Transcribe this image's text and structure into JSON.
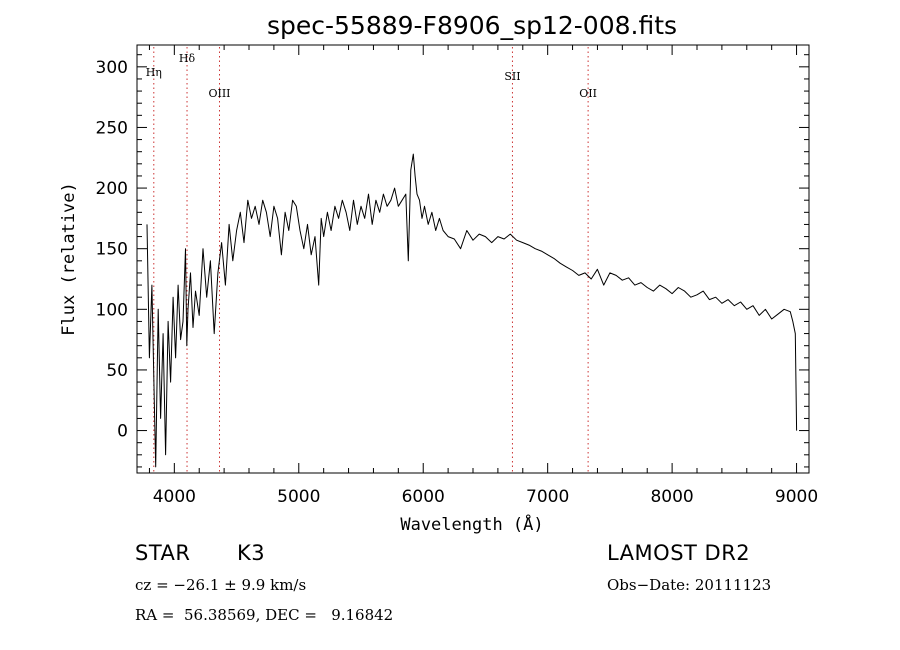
{
  "chart_data": {
    "type": "line",
    "title": "spec-55889-F8906_sp12-008.fits",
    "xlabel": "Wavelength (Å)",
    "ylabel": "Flux (relative)",
    "xlim": [
      3700,
      9100
    ],
    "ylim": [
      -35,
      318
    ],
    "xticks": [
      4000,
      5000,
      6000,
      7000,
      8000,
      9000
    ],
    "yticks": [
      0,
      50,
      100,
      150,
      200,
      250,
      300
    ],
    "grid": false,
    "line_color": "#000000",
    "marker_color": "#cc3333",
    "lines": [
      {
        "label": "Hη",
        "x": 3835
      },
      {
        "label": "Hδ",
        "x": 4102
      },
      {
        "label": "OIII",
        "x": 4363
      },
      {
        "label": "SII",
        "x": 6717
      },
      {
        "label": "OII",
        "x": 7325
      }
    ],
    "series": [
      {
        "x": [
          3780,
          3800,
          3820,
          3840,
          3850,
          3870,
          3890,
          3910,
          3930,
          3950,
          3970,
          3990,
          4010,
          4030,
          4050,
          4070,
          4090,
          4100,
          4110,
          4130,
          4150,
          4170,
          4200,
          4230,
          4260,
          4290,
          4320,
          4350,
          4380,
          4410,
          4440,
          4470,
          4500,
          4530,
          4560,
          4590,
          4620,
          4650,
          4680,
          4710,
          4740,
          4770,
          4800,
          4830,
          4860,
          4890,
          4920,
          4950,
          4980,
          5010,
          5040,
          5070,
          5100,
          5130,
          5160,
          5180,
          5200,
          5230,
          5260,
          5290,
          5320,
          5350,
          5380,
          5410,
          5440,
          5470,
          5500,
          5530,
          5560,
          5590,
          5620,
          5650,
          5680,
          5710,
          5740,
          5770,
          5800,
          5830,
          5860,
          5880,
          5900,
          5920,
          5935,
          5950,
          5970,
          5990,
          6010,
          6040,
          6070,
          6100,
          6130,
          6160,
          6200,
          6250,
          6300,
          6350,
          6400,
          6450,
          6500,
          6550,
          6600,
          6650,
          6700,
          6750,
          6800,
          6850,
          6900,
          6950,
          7000,
          7050,
          7100,
          7150,
          7200,
          7250,
          7300,
          7350,
          7400,
          7450,
          7500,
          7550,
          7600,
          7650,
          7700,
          7750,
          7800,
          7850,
          7900,
          7950,
          8000,
          8050,
          8100,
          8150,
          8200,
          8250,
          8300,
          8350,
          8400,
          8450,
          8500,
          8550,
          8600,
          8650,
          8700,
          8750,
          8800,
          8850,
          8900,
          8950,
          8970,
          8990,
          9000
        ],
        "y": [
          170,
          60,
          120,
          20,
          -30,
          100,
          10,
          80,
          -20,
          90,
          40,
          110,
          60,
          120,
          75,
          90,
          150,
          70,
          100,
          130,
          85,
          115,
          95,
          150,
          110,
          140,
          80,
          130,
          155,
          120,
          170,
          140,
          165,
          180,
          155,
          190,
          175,
          185,
          170,
          190,
          180,
          160,
          185,
          175,
          145,
          180,
          165,
          190,
          185,
          165,
          150,
          170,
          145,
          160,
          120,
          175,
          160,
          180,
          165,
          185,
          175,
          190,
          180,
          165,
          190,
          170,
          185,
          175,
          195,
          170,
          190,
          180,
          195,
          185,
          190,
          200,
          185,
          190,
          195,
          140,
          215,
          228,
          210,
          195,
          190,
          175,
          185,
          170,
          180,
          165,
          175,
          165,
          160,
          158,
          150,
          165,
          157,
          162,
          160,
          155,
          160,
          158,
          162,
          157,
          155,
          153,
          150,
          148,
          145,
          142,
          138,
          135,
          132,
          128,
          130,
          125,
          133,
          120,
          130,
          128,
          124,
          126,
          120,
          122,
          118,
          115,
          120,
          117,
          113,
          118,
          115,
          110,
          112,
          115,
          108,
          110,
          105,
          108,
          103,
          106,
          100,
          103,
          95,
          100,
          92,
          96,
          100,
          98,
          90,
          80,
          0
        ]
      }
    ]
  },
  "info": {
    "class_label": "STAR",
    "subclass": "K3",
    "survey": "LAMOST DR2",
    "cz": "cz = −26.1 ± 9.9 km/s",
    "obs_date": "Obs−Date: 20111123",
    "coords": "RA =  56.38569, DEC =   9.16842"
  }
}
